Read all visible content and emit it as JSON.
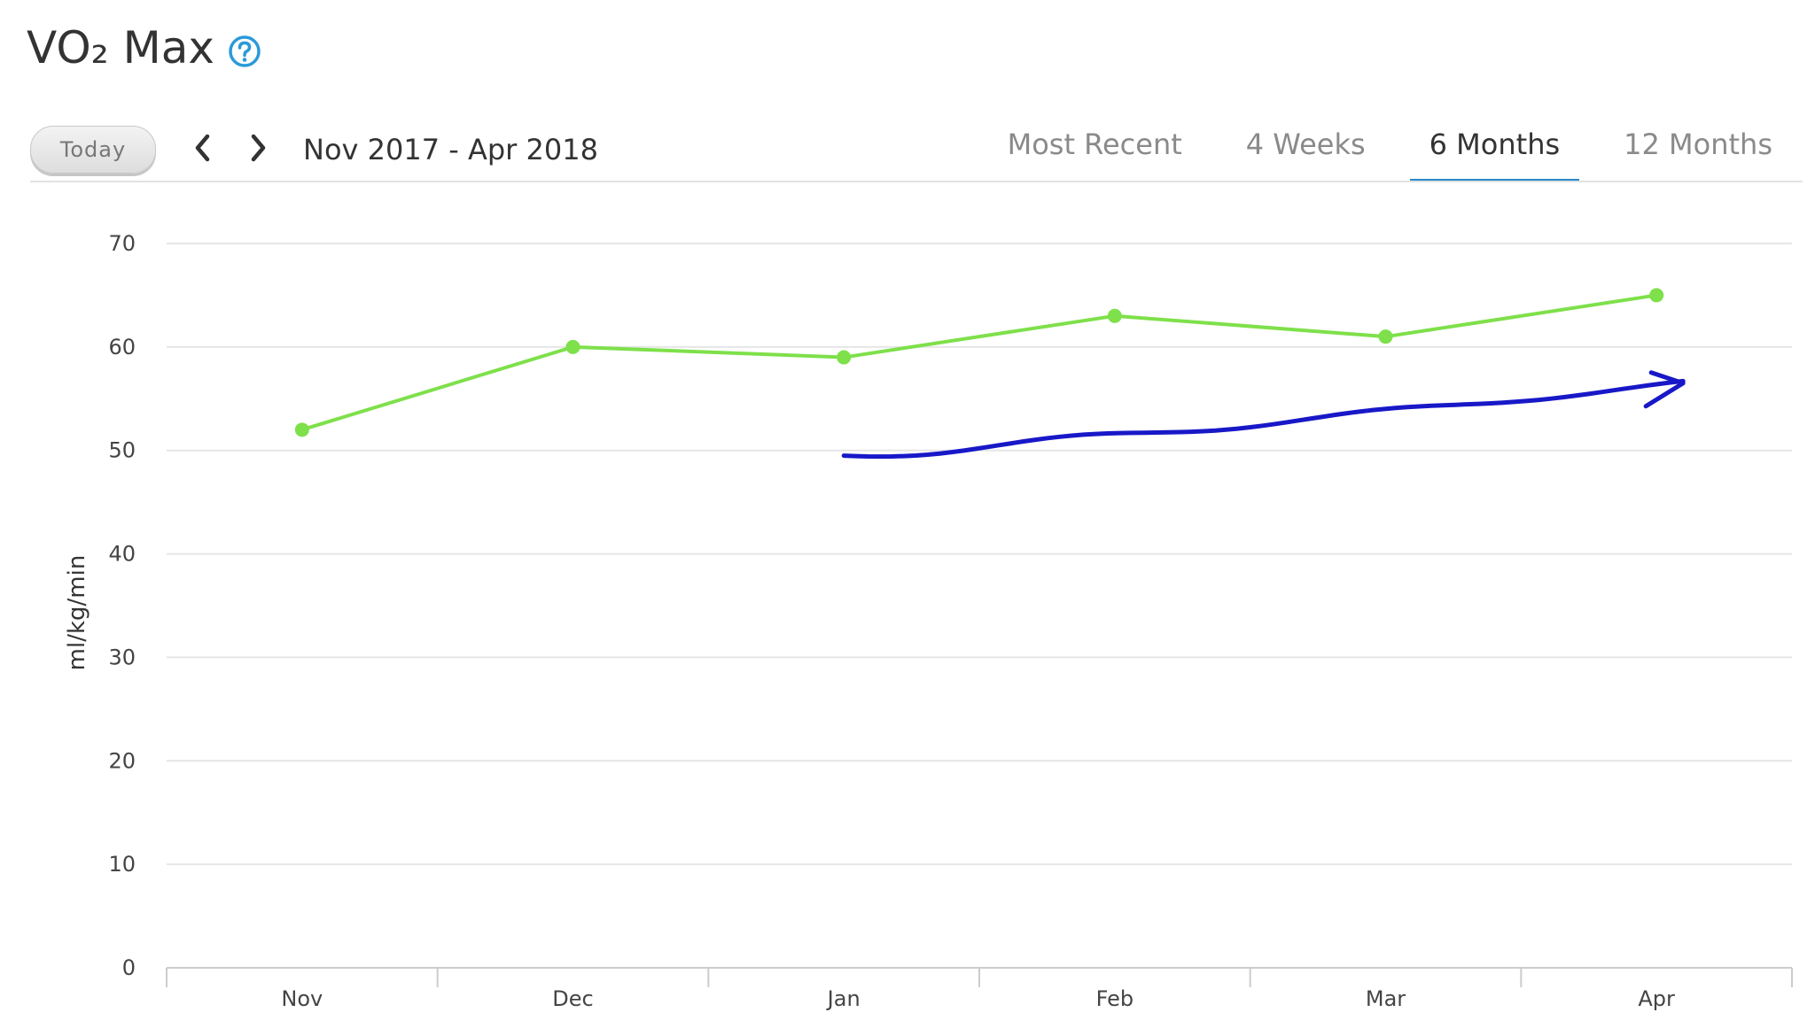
{
  "header": {
    "title": "VO₂ Max",
    "help_icon": "question-circle-icon"
  },
  "controls": {
    "today_label": "Today",
    "prev_icon": "chevron-left-icon",
    "next_icon": "chevron-right-icon",
    "date_range": "Nov 2017 - Apr 2018"
  },
  "tabs": [
    {
      "label": "Most Recent",
      "active": false
    },
    {
      "label": "4 Weeks",
      "active": false
    },
    {
      "label": "6 Months",
      "active": true
    },
    {
      "label": "12 Months",
      "active": false
    }
  ],
  "colors": {
    "series": "#7ee04a",
    "accent": "#2a8ac8",
    "annotation": "#1818c8"
  },
  "chart_data": {
    "type": "line",
    "title": "",
    "xlabel": "",
    "ylabel": "ml/kg/min",
    "categories": [
      "Nov",
      "Dec",
      "Jan",
      "Feb",
      "Mar",
      "Apr"
    ],
    "series": [
      {
        "values": [
          52,
          60,
          59,
          63,
          61,
          65
        ]
      }
    ],
    "yticks": [
      0,
      10,
      20,
      30,
      40,
      50,
      60,
      70
    ],
    "ylim": [
      0,
      70
    ],
    "grid": true,
    "annotation": {
      "type": "hand-drawn upward-trend arrow",
      "from_category": "Jan",
      "to_category": "Apr",
      "start_value": 49.5,
      "end_value": 56.5
    }
  }
}
